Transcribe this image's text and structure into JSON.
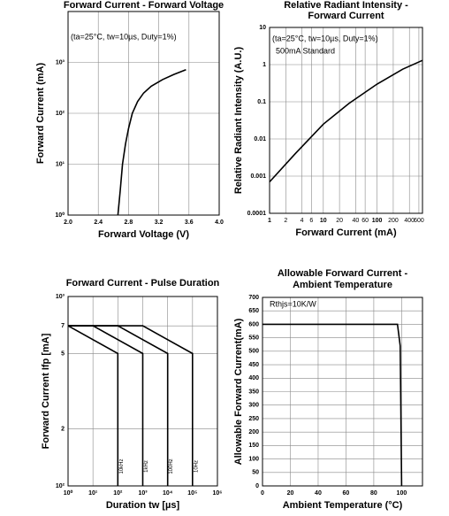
{
  "chart_data": [
    {
      "type": "line",
      "title": [
        "Forward Current - Forward Voltage"
      ],
      "xlabel": "Forward Voltage (V)",
      "ylabel": "Forward Current (mA)",
      "annotations": [
        "(ta=25°C, tw=10µs, Duty=1%)"
      ],
      "xscale": "linear",
      "yscale": "log",
      "xlim": [
        2.0,
        4.0
      ],
      "xticks": [
        {
          "value": 2.0,
          "label": "2.0"
        },
        2.4,
        2.8,
        3.2,
        3.6,
        {
          "value": 4.0,
          "label": "4.0"
        }
      ],
      "ylim": [
        1,
        10000
      ],
      "yticks": [
        {
          "value": 1,
          "label": "10⁰"
        },
        {
          "value": 10,
          "label": "10¹"
        },
        {
          "value": 100,
          "label": "10²"
        },
        {
          "value": 1000,
          "label": "10³"
        }
      ],
      "grid": true,
      "color": "#000000",
      "x": [
        2.66,
        2.69,
        2.72,
        2.76,
        2.8,
        2.85,
        2.92,
        3.0,
        3.1,
        3.25,
        3.4,
        3.56
      ],
      "values": [
        1,
        3,
        10,
        25,
        50,
        100,
        170,
        250,
        340,
        460,
        580,
        720
      ]
    },
    {
      "type": "line",
      "title": [
        "Relative Radiant Intensity -",
        "Forward Current"
      ],
      "xlabel": "Forward Current (mA)",
      "ylabel": "Relative Radiant Intensity (A.U.)",
      "annotations": [
        "(ta=25°C, tw=10µs, Duty=1%)",
        "500mA Standard"
      ],
      "xscale": "log",
      "yscale": "log",
      "xlim": [
        1,
        700
      ],
      "xticks": [
        1,
        2,
        4,
        6,
        10,
        20,
        40,
        60,
        100,
        200,
        400,
        600
      ],
      "ylim": [
        0.0001,
        10
      ],
      "yticks": [
        0.0001,
        0.001,
        0.01,
        0.1,
        1,
        10
      ],
      "grid": true,
      "color": "#000000",
      "x": [
        1,
        3,
        10,
        30,
        100,
        300,
        700
      ],
      "values": [
        0.0007,
        0.004,
        0.025,
        0.09,
        0.3,
        0.75,
        1.3
      ]
    },
    {
      "type": "line",
      "title": [
        "Forward Current - Pulse Duration"
      ],
      "xlabel": "Duration tw [µs]",
      "ylabel": "Forward Current Ifp [mA]",
      "xscale": "log",
      "yscale": "log",
      "xlim": [
        1,
        1000000
      ],
      "xticks": [
        {
          "value": 1,
          "label": "10⁰"
        },
        {
          "value": 10,
          "label": "10¹"
        },
        {
          "value": 100,
          "label": "10²"
        },
        {
          "value": 1000,
          "label": "10³"
        },
        {
          "value": 10000,
          "label": "10⁴"
        },
        {
          "value": 100000,
          "label": "10⁵"
        },
        {
          "value": 1000000,
          "label": "10⁶"
        }
      ],
      "ylim": [
        100,
        1000
      ],
      "yticks": [
        {
          "value": 100,
          "label": "10²"
        },
        {
          "value": 200,
          "label": "2"
        },
        {
          "value": 500,
          "label": "5"
        },
        {
          "value": 700,
          "label": "7"
        },
        {
          "value": 1000,
          "label": "10³"
        }
      ],
      "grid": true,
      "series": [
        {
          "name": "10kHz",
          "color": "#000000",
          "x": [
            1,
            100,
            100
          ],
          "values": [
            700,
            500,
            100
          ]
        },
        {
          "name": "1kHz",
          "color": "#000000",
          "x": [
            1,
            10,
            1000,
            1000
          ],
          "values": [
            700,
            700,
            500,
            100
          ]
        },
        {
          "name": "100Hz",
          "color": "#000000",
          "x": [
            1,
            100,
            10000,
            10000
          ],
          "values": [
            700,
            700,
            500,
            100
          ]
        },
        {
          "name": "10Hz",
          "color": "#000000",
          "x": [
            1,
            1000,
            100000,
            100000
          ],
          "values": [
            700,
            700,
            500,
            100
          ]
        }
      ]
    },
    {
      "type": "line",
      "title": [
        "Allowable Forward Current -",
        "Ambient Temperature"
      ],
      "xlabel": "Ambient Temperature (°C)",
      "ylabel": "Allowable Forward Current(mA)",
      "annotations": [
        "Rthjs=10K/W"
      ],
      "xscale": "linear",
      "yscale": "linear",
      "xlim": [
        0,
        115
      ],
      "xticks": [
        0,
        20,
        40,
        60,
        80,
        100
      ],
      "ylim": [
        0,
        700
      ],
      "yticks": [
        0,
        50,
        100,
        150,
        200,
        250,
        300,
        350,
        400,
        450,
        500,
        550,
        600,
        650,
        700
      ],
      "grid": true,
      "color": "#000000",
      "x": [
        0,
        97,
        99,
        100
      ],
      "values": [
        600,
        600,
        520,
        0
      ]
    }
  ]
}
